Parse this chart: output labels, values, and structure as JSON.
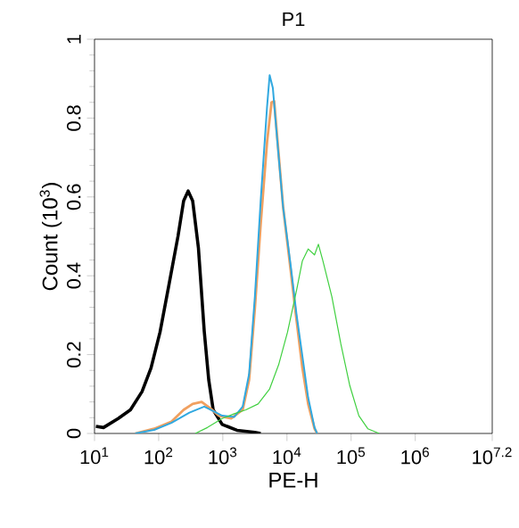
{
  "chart_data": {
    "type": "line",
    "title": "P1",
    "xlabel": "PE-H",
    "ylabel": "Count (10$^{3}$)",
    "log": "x",
    "xlim": [
      10,
      15848932
    ],
    "ylim": [
      0,
      1
    ],
    "xticks": [
      {
        "value": 10,
        "label": "10$^{1}$"
      },
      {
        "value": 100,
        "label": "10$^{2}$"
      },
      {
        "value": 1000,
        "label": "10$^{3}$"
      },
      {
        "value": 10000,
        "label": "10$^{4}$"
      },
      {
        "value": 100000,
        "label": "10$^{5}$"
      },
      {
        "value": 1000000,
        "label": "10$^{6}$"
      },
      {
        "value": 15848932,
        "label": "10$^{7.2}$"
      }
    ],
    "yticks": [
      0,
      0.2,
      0.4,
      0.6,
      0.8,
      1
    ],
    "series": [
      {
        "color": "#000000",
        "x": [
          10.5,
          13.8,
          23.4,
          36.3,
          55,
          76,
          105,
          145,
          200,
          245,
          288,
          339,
          417,
          513,
          603,
          708,
          977,
          1660,
          3160,
          3890
        ],
        "values": [
          0.018,
          0.015,
          0.038,
          0.06,
          0.106,
          0.166,
          0.257,
          0.378,
          0.5,
          0.59,
          0.615,
          0.59,
          0.47,
          0.26,
          0.136,
          0.06,
          0.023,
          0.008,
          0.003,
          0
        ]
      },
      {
        "color": "#f0a060",
        "x": [
          43,
          85,
          158,
          245,
          339,
          468,
          646,
          871,
          1350,
          2040,
          2570,
          3160,
          3890,
          4900,
          5750,
          6310,
          7410,
          8710,
          11500,
          14100,
          17400,
          21400,
          26900,
          29500
        ],
        "values": [
          0,
          0.012,
          0.03,
          0.06,
          0.075,
          0.08,
          0.063,
          0.045,
          0.038,
          0.06,
          0.136,
          0.317,
          0.53,
          0.74,
          0.84,
          0.843,
          0.71,
          0.574,
          0.41,
          0.287,
          0.166,
          0.075,
          0.012,
          0
        ]
      },
      {
        "color": "#30a8e0",
        "x": [
          43,
          85,
          158,
          302,
          513,
          708,
          977,
          1510,
          2040,
          2570,
          3160,
          3890,
          4900,
          5370,
          6030,
          7080,
          8710,
          11500,
          14100,
          17400,
          21400,
          26900,
          29500
        ],
        "values": [
          0,
          0.009,
          0.027,
          0.053,
          0.068,
          0.057,
          0.045,
          0.042,
          0.068,
          0.151,
          0.347,
          0.589,
          0.83,
          0.909,
          0.876,
          0.74,
          0.574,
          0.423,
          0.302,
          0.196,
          0.091,
          0.015,
          0
        ]
      },
      {
        "color": "#40d040",
        "x": [
          372,
          575,
          977,
          1510,
          2290,
          3550,
          5370,
          7410,
          10200,
          14100,
          17400,
          21400,
          26900,
          30900,
          36300,
          50100,
          69200,
          95500,
          132000,
          182000,
          275000
        ],
        "values": [
          0,
          0.015,
          0.038,
          0.05,
          0.06,
          0.075,
          0.113,
          0.174,
          0.257,
          0.363,
          0.438,
          0.468,
          0.453,
          0.48,
          0.438,
          0.347,
          0.227,
          0.121,
          0.045,
          0.012,
          0
        ]
      }
    ]
  }
}
